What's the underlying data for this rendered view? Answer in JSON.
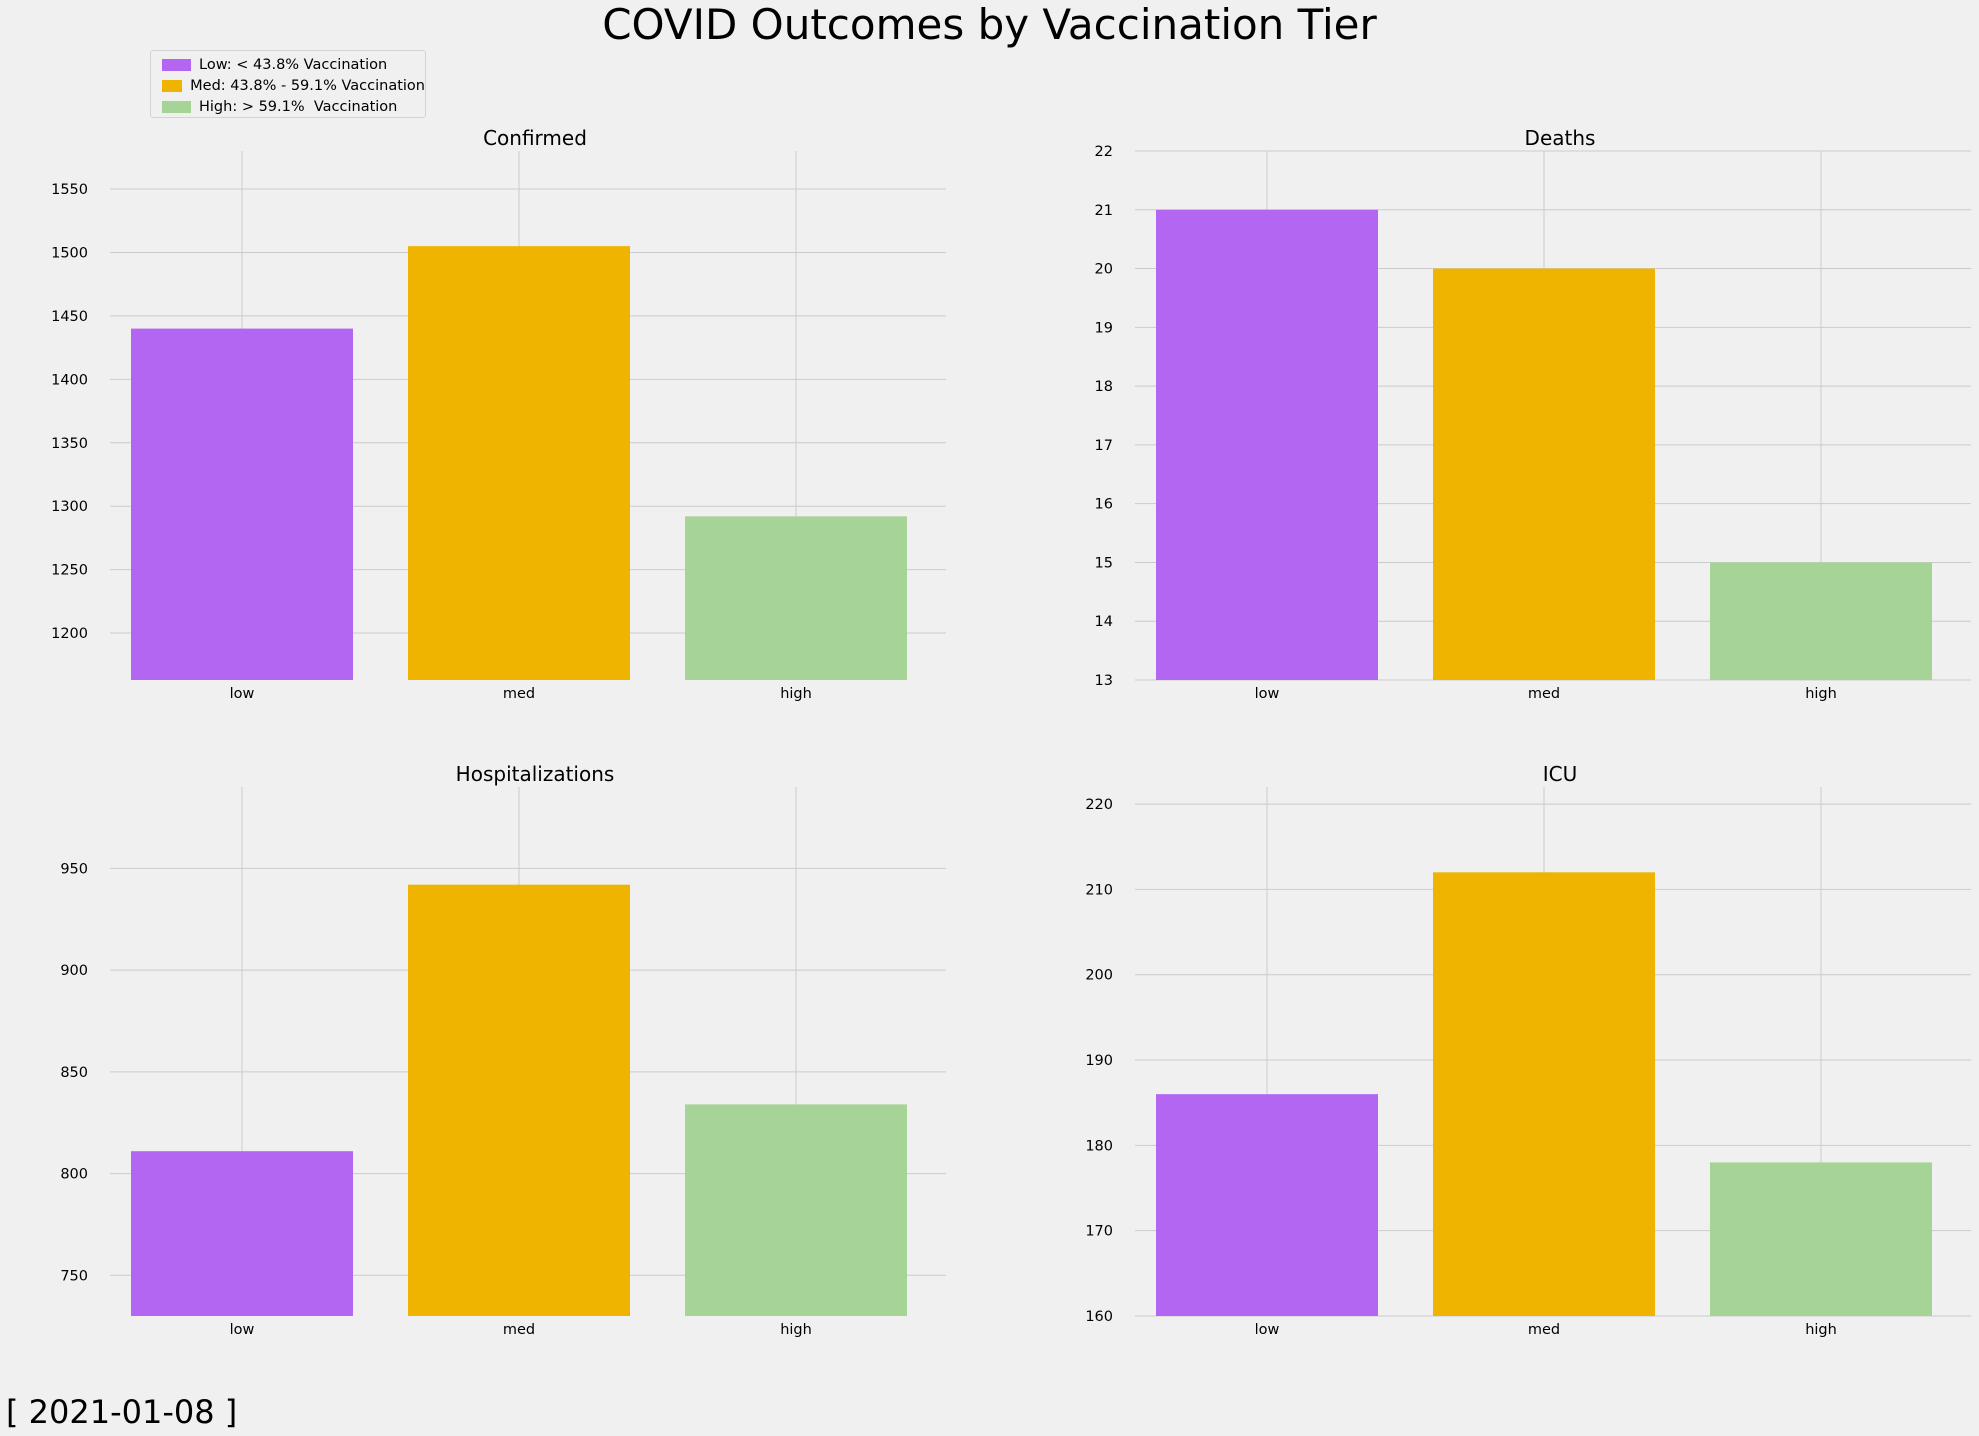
{
  "title": "COVID Outcomes by Vaccination Tier",
  "date_stamp": "[ 2021-01-08 ]",
  "legend": {
    "placement": "top-left",
    "items": [
      {
        "label": "Low: < 43.8% Vaccination",
        "color": "#b366f2"
      },
      {
        "label": "Med: 43.8% - 59.1% Vaccination",
        "color": "#efb400"
      },
      {
        "label": "High: > 59.1%  Vaccination",
        "color": "#a6d396"
      }
    ]
  },
  "chart_data": [
    {
      "type": "bar",
      "title": "Confirmed",
      "categories": [
        "low",
        "med",
        "high"
      ],
      "values": [
        1440,
        1505,
        1292
      ],
      "colors": [
        "#b366f2",
        "#efb400",
        "#a6d396"
      ],
      "ylim": [
        1163,
        1580
      ],
      "yticks": [
        1200,
        1250,
        1300,
        1350,
        1400,
        1450,
        1500,
        1550
      ],
      "grid": true
    },
    {
      "type": "bar",
      "title": "Deaths",
      "categories": [
        "low",
        "med",
        "high"
      ],
      "values": [
        21,
        20,
        15
      ],
      "colors": [
        "#b366f2",
        "#efb400",
        "#a6d396"
      ],
      "ylim": [
        13,
        22
      ],
      "yticks": [
        13,
        14,
        15,
        16,
        17,
        18,
        19,
        20,
        21,
        22
      ],
      "grid": true
    },
    {
      "type": "bar",
      "title": "Hospitalizations",
      "categories": [
        "low",
        "med",
        "high"
      ],
      "values": [
        811,
        942,
        834
      ],
      "colors": [
        "#b366f2",
        "#efb400",
        "#a6d396"
      ],
      "ylim": [
        730,
        990
      ],
      "yticks": [
        750,
        800,
        850,
        900,
        950
      ],
      "grid": true
    },
    {
      "type": "bar",
      "title": "ICU",
      "categories": [
        "low",
        "med",
        "high"
      ],
      "values": [
        186,
        212,
        178
      ],
      "colors": [
        "#b366f2",
        "#efb400",
        "#a6d396"
      ],
      "ylim": [
        160,
        222
      ],
      "yticks": [
        160,
        170,
        180,
        190,
        200,
        210,
        220
      ],
      "grid": true
    }
  ]
}
